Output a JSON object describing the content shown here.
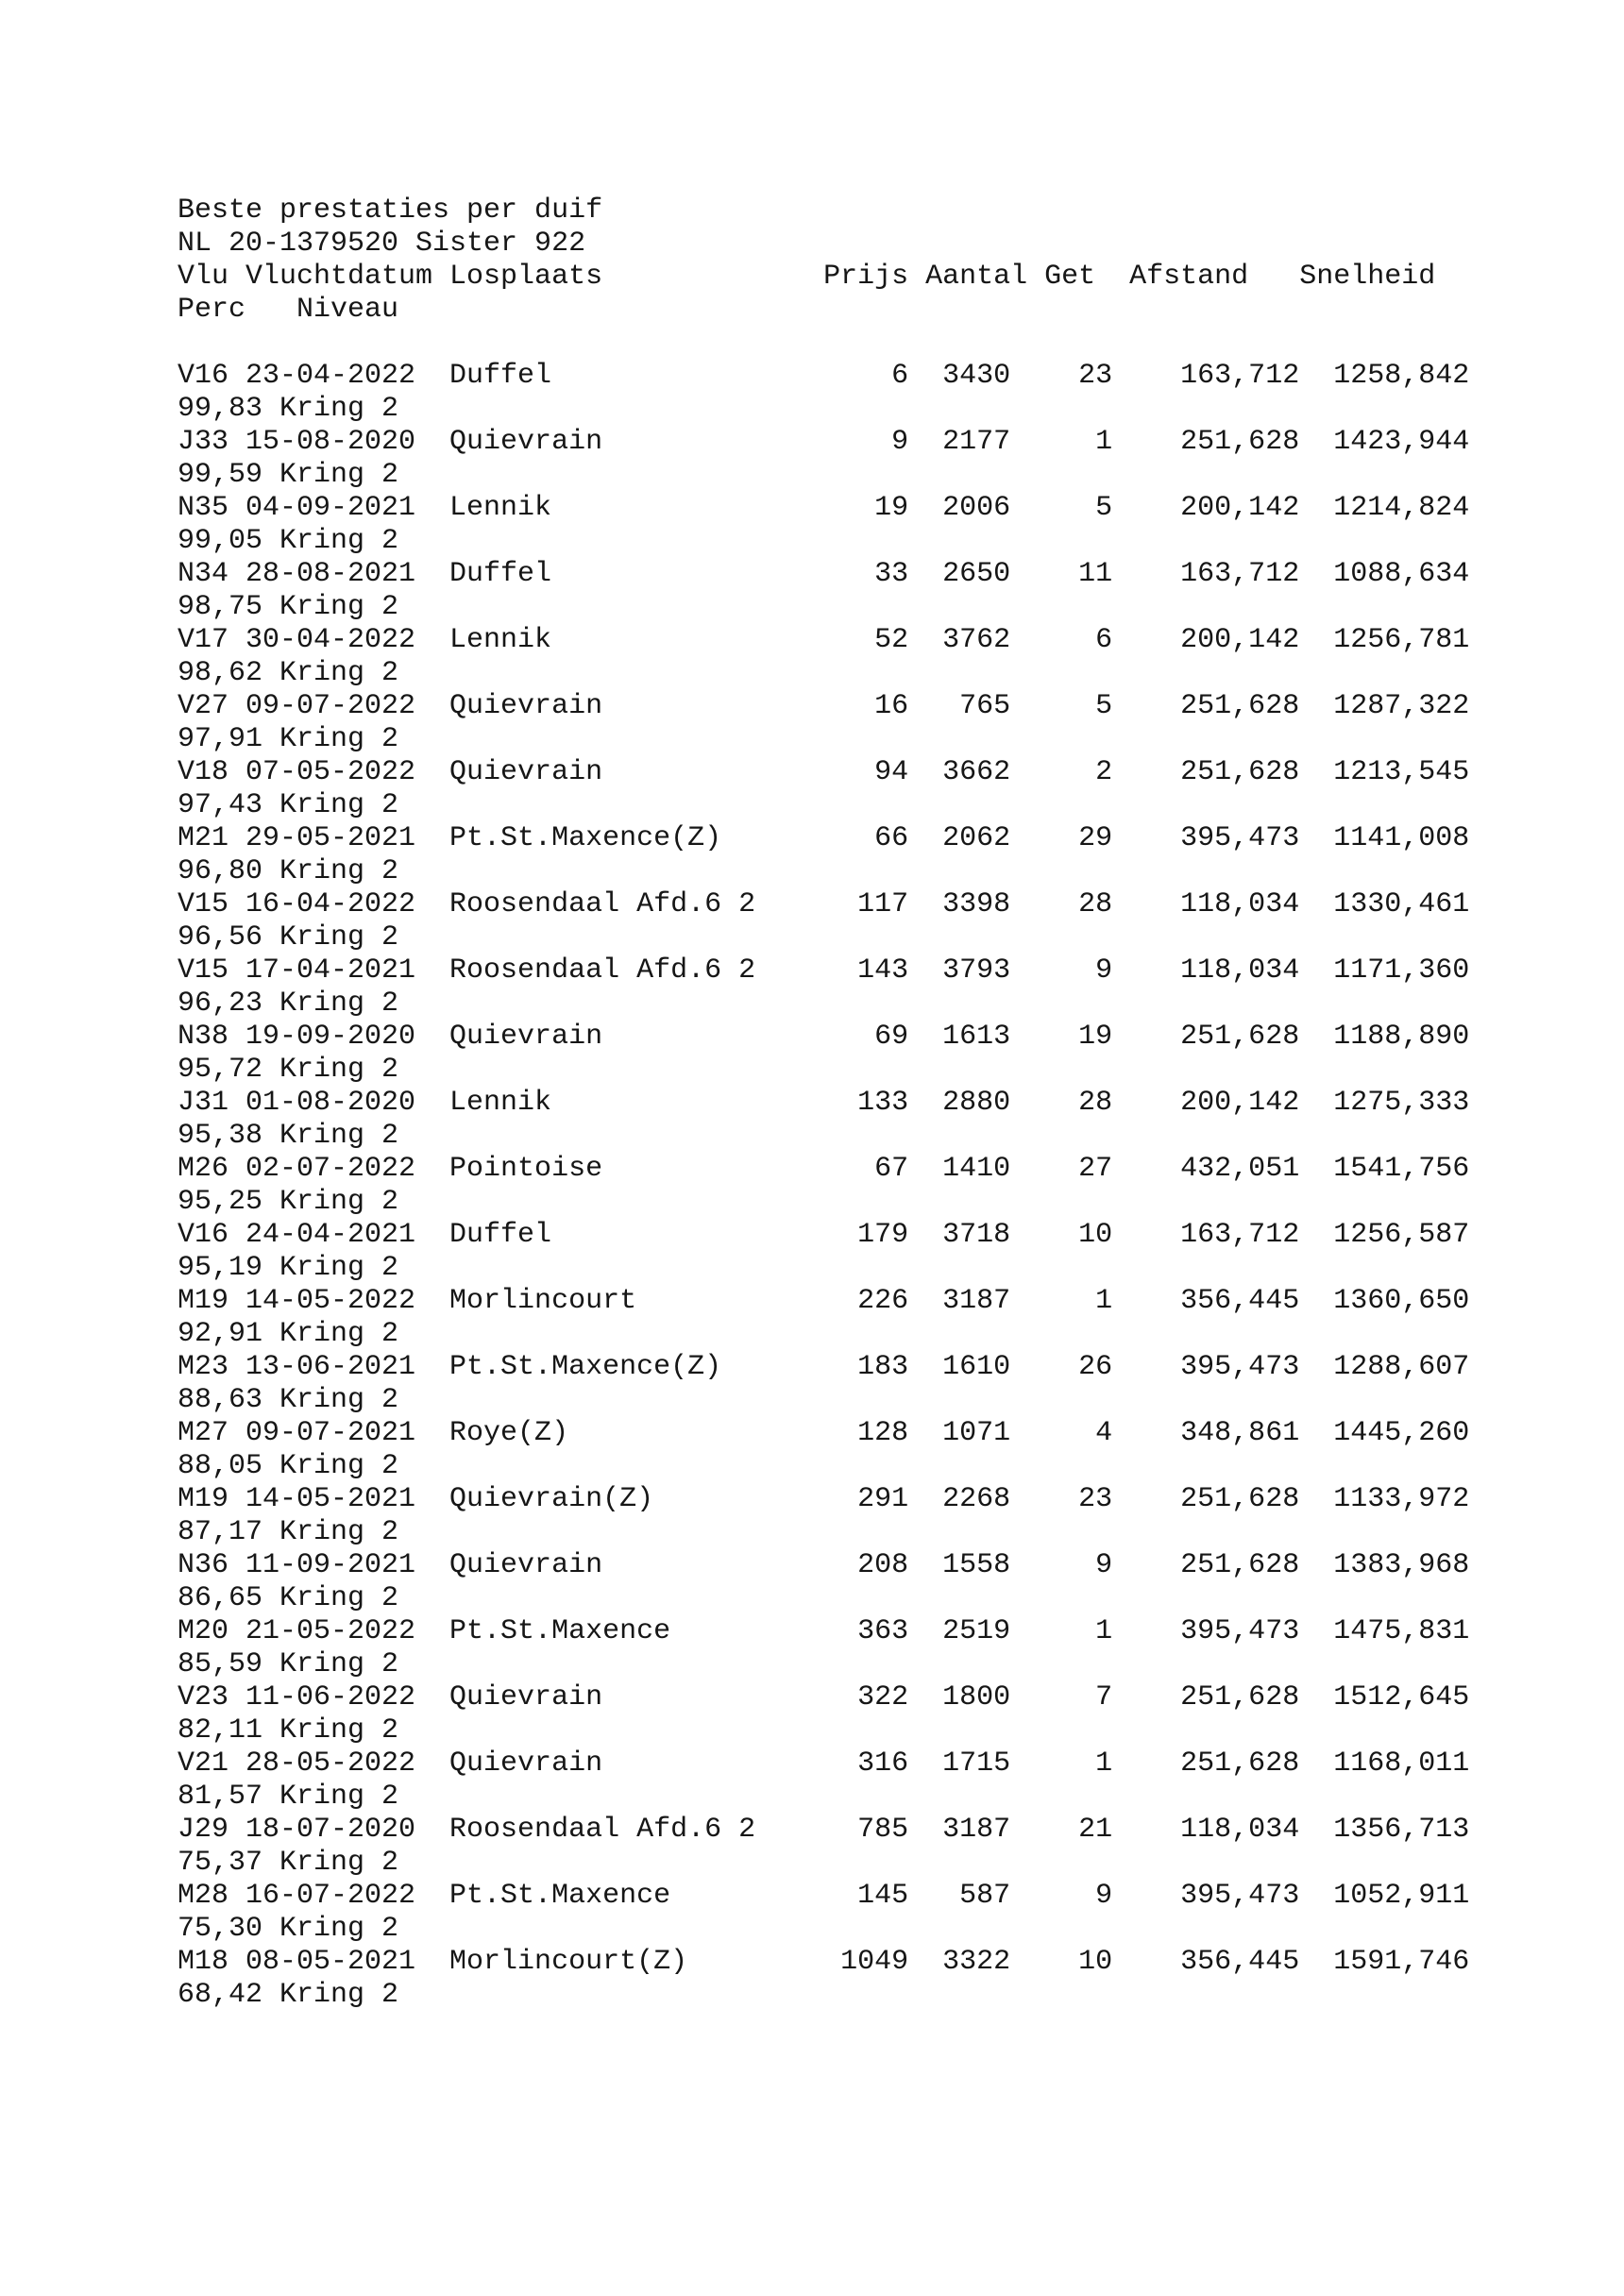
{
  "page": {
    "title": "Beste prestaties per duif",
    "pigeon_id": "NL 20-1379520 Sister 922",
    "background": "#ffffff",
    "text_color": "#161616"
  },
  "columns": {
    "vlu": "Vlu",
    "vluchtdatum": "Vluchtdatum",
    "losplaats": "Losplaats",
    "prijs": "Prijs",
    "aantal": "Aantal",
    "get": "Get",
    "afstand": "Afstand",
    "snelheid": "Snelheid",
    "perc": "Perc",
    "niveau": "Niveau"
  },
  "rows": [
    {
      "vlu": "V16",
      "datum": "23-04-2022",
      "losplaats": "Duffel",
      "prijs": "6",
      "aantal": "3430",
      "get": "23",
      "afstand": "163,712",
      "snelheid": "1258,842",
      "perc": "99,83",
      "niveau": "Kring 2"
    },
    {
      "vlu": "J33",
      "datum": "15-08-2020",
      "losplaats": "Quievrain",
      "prijs": "9",
      "aantal": "2177",
      "get": "1",
      "afstand": "251,628",
      "snelheid": "1423,944",
      "perc": "99,59",
      "niveau": "Kring 2"
    },
    {
      "vlu": "N35",
      "datum": "04-09-2021",
      "losplaats": "Lennik",
      "prijs": "19",
      "aantal": "2006",
      "get": "5",
      "afstand": "200,142",
      "snelheid": "1214,824",
      "perc": "99,05",
      "niveau": "Kring 2"
    },
    {
      "vlu": "N34",
      "datum": "28-08-2021",
      "losplaats": "Duffel",
      "prijs": "33",
      "aantal": "2650",
      "get": "11",
      "afstand": "163,712",
      "snelheid": "1088,634",
      "perc": "98,75",
      "niveau": "Kring 2"
    },
    {
      "vlu": "V17",
      "datum": "30-04-2022",
      "losplaats": "Lennik",
      "prijs": "52",
      "aantal": "3762",
      "get": "6",
      "afstand": "200,142",
      "snelheid": "1256,781",
      "perc": "98,62",
      "niveau": "Kring 2"
    },
    {
      "vlu": "V27",
      "datum": "09-07-2022",
      "losplaats": "Quievrain",
      "prijs": "16",
      "aantal": "765",
      "get": "5",
      "afstand": "251,628",
      "snelheid": "1287,322",
      "perc": "97,91",
      "niveau": "Kring 2"
    },
    {
      "vlu": "V18",
      "datum": "07-05-2022",
      "losplaats": "Quievrain",
      "prijs": "94",
      "aantal": "3662",
      "get": "2",
      "afstand": "251,628",
      "snelheid": "1213,545",
      "perc": "97,43",
      "niveau": "Kring 2"
    },
    {
      "vlu": "M21",
      "datum": "29-05-2021",
      "losplaats": "Pt.St.Maxence(Z)",
      "prijs": "66",
      "aantal": "2062",
      "get": "29",
      "afstand": "395,473",
      "snelheid": "1141,008",
      "perc": "96,80",
      "niveau": "Kring 2"
    },
    {
      "vlu": "V15",
      "datum": "16-04-2022",
      "losplaats": "Roosendaal Afd.6 2",
      "prijs": "117",
      "aantal": "3398",
      "get": "28",
      "afstand": "118,034",
      "snelheid": "1330,461",
      "perc": "96,56",
      "niveau": "Kring 2"
    },
    {
      "vlu": "V15",
      "datum": "17-04-2021",
      "losplaats": "Roosendaal Afd.6 2",
      "prijs": "143",
      "aantal": "3793",
      "get": "9",
      "afstand": "118,034",
      "snelheid": "1171,360",
      "perc": "96,23",
      "niveau": "Kring 2"
    },
    {
      "vlu": "N38",
      "datum": "19-09-2020",
      "losplaats": "Quievrain",
      "prijs": "69",
      "aantal": "1613",
      "get": "19",
      "afstand": "251,628",
      "snelheid": "1188,890",
      "perc": "95,72",
      "niveau": "Kring 2"
    },
    {
      "vlu": "J31",
      "datum": "01-08-2020",
      "losplaats": "Lennik",
      "prijs": "133",
      "aantal": "2880",
      "get": "28",
      "afstand": "200,142",
      "snelheid": "1275,333",
      "perc": "95,38",
      "niveau": "Kring 2"
    },
    {
      "vlu": "M26",
      "datum": "02-07-2022",
      "losplaats": "Pointoise",
      "prijs": "67",
      "aantal": "1410",
      "get": "27",
      "afstand": "432,051",
      "snelheid": "1541,756",
      "perc": "95,25",
      "niveau": "Kring 2"
    },
    {
      "vlu": "V16",
      "datum": "24-04-2021",
      "losplaats": "Duffel",
      "prijs": "179",
      "aantal": "3718",
      "get": "10",
      "afstand": "163,712",
      "snelheid": "1256,587",
      "perc": "95,19",
      "niveau": "Kring 2"
    },
    {
      "vlu": "M19",
      "datum": "14-05-2022",
      "losplaats": "Morlincourt",
      "prijs": "226",
      "aantal": "3187",
      "get": "1",
      "afstand": "356,445",
      "snelheid": "1360,650",
      "perc": "92,91",
      "niveau": "Kring 2"
    },
    {
      "vlu": "M23",
      "datum": "13-06-2021",
      "losplaats": "Pt.St.Maxence(Z)",
      "prijs": "183",
      "aantal": "1610",
      "get": "26",
      "afstand": "395,473",
      "snelheid": "1288,607",
      "perc": "88,63",
      "niveau": "Kring 2"
    },
    {
      "vlu": "M27",
      "datum": "09-07-2021",
      "losplaats": "Roye(Z)",
      "prijs": "128",
      "aantal": "1071",
      "get": "4",
      "afstand": "348,861",
      "snelheid": "1445,260",
      "perc": "88,05",
      "niveau": "Kring 2"
    },
    {
      "vlu": "M19",
      "datum": "14-05-2021",
      "losplaats": "Quievrain(Z)",
      "prijs": "291",
      "aantal": "2268",
      "get": "23",
      "afstand": "251,628",
      "snelheid": "1133,972",
      "perc": "87,17",
      "niveau": "Kring 2"
    },
    {
      "vlu": "N36",
      "datum": "11-09-2021",
      "losplaats": "Quievrain",
      "prijs": "208",
      "aantal": "1558",
      "get": "9",
      "afstand": "251,628",
      "snelheid": "1383,968",
      "perc": "86,65",
      "niveau": "Kring 2"
    },
    {
      "vlu": "M20",
      "datum": "21-05-2022",
      "losplaats": "Pt.St.Maxence",
      "prijs": "363",
      "aantal": "2519",
      "get": "1",
      "afstand": "395,473",
      "snelheid": "1475,831",
      "perc": "85,59",
      "niveau": "Kring 2"
    },
    {
      "vlu": "V23",
      "datum": "11-06-2022",
      "losplaats": "Quievrain",
      "prijs": "322",
      "aantal": "1800",
      "get": "7",
      "afstand": "251,628",
      "snelheid": "1512,645",
      "perc": "82,11",
      "niveau": "Kring 2"
    },
    {
      "vlu": "V21",
      "datum": "28-05-2022",
      "losplaats": "Quievrain",
      "prijs": "316",
      "aantal": "1715",
      "get": "1",
      "afstand": "251,628",
      "snelheid": "1168,011",
      "perc": "81,57",
      "niveau": "Kring 2"
    },
    {
      "vlu": "J29",
      "datum": "18-07-2020",
      "losplaats": "Roosendaal Afd.6 2",
      "prijs": "785",
      "aantal": "3187",
      "get": "21",
      "afstand": "118,034",
      "snelheid": "1356,713",
      "perc": "75,37",
      "niveau": "Kring 2"
    },
    {
      "vlu": "M28",
      "datum": "16-07-2022",
      "losplaats": "Pt.St.Maxence",
      "prijs": "145",
      "aantal": "587",
      "get": "9",
      "afstand": "395,473",
      "snelheid": "1052,911",
      "perc": "75,30",
      "niveau": "Kring 2"
    },
    {
      "vlu": "M18",
      "datum": "08-05-2021",
      "losplaats": "Morlincourt(Z)",
      "prijs": "1049",
      "aantal": "3322",
      "get": "10",
      "afstand": "356,445",
      "snelheid": "1591,746",
      "perc": "68,42",
      "niveau": "Kring 2"
    }
  ]
}
